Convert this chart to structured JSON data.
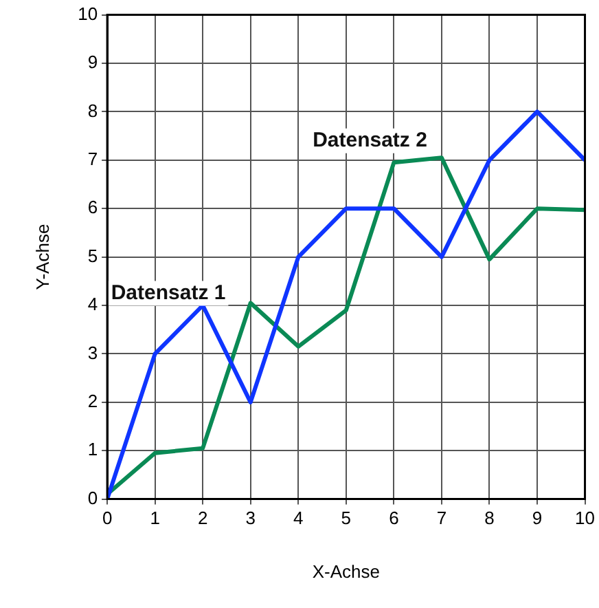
{
  "chart_data": {
    "type": "line",
    "xlabel": "X-Achse",
    "ylabel": "Y-Achse",
    "x": [
      0,
      1,
      2,
      3,
      4,
      5,
      6,
      7,
      8,
      9,
      10
    ],
    "series": [
      {
        "name": "Datensatz 1",
        "color": "#0f35ff",
        "values": [
          0,
          3,
          4,
          2,
          5,
          6,
          6,
          5,
          7,
          8,
          7
        ]
      },
      {
        "name": "Datensatz 2",
        "color": "#0a8a55",
        "values": [
          0.1,
          0.95,
          1.05,
          4.05,
          3.15,
          3.9,
          6.95,
          7.05,
          4.95,
          6.0,
          5.97
        ]
      }
    ],
    "xlim": [
      0,
      10
    ],
    "ylim": [
      0,
      10
    ],
    "xticks": [
      0,
      1,
      2,
      3,
      4,
      5,
      6,
      7,
      8,
      9,
      10
    ],
    "yticks": [
      0,
      1,
      2,
      3,
      4,
      5,
      6,
      7,
      8,
      9,
      10
    ],
    "grid": true,
    "legend": false,
    "marker": "none",
    "line_style": "solid"
  }
}
